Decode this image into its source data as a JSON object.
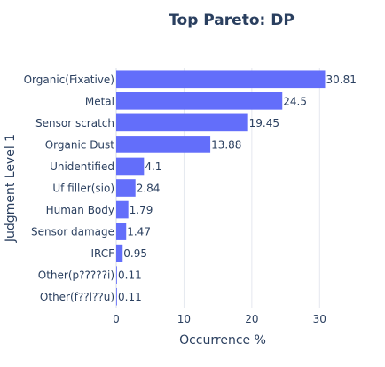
{
  "chart_data": {
    "type": "bar",
    "orientation": "horizontal",
    "title": "Top Pareto: DP",
    "xlabel": "Occurrence %",
    "ylabel": "Judgment Level 1",
    "categories": [
      "Organic(Fixative)",
      "Metal",
      "Sensor scratch",
      "Organic Dust",
      "Unidentified",
      "Uf filler(sio)",
      "Human Body",
      "Sensor damage",
      "IRCF",
      "Other(p?????i)",
      "Other(f??l??u)"
    ],
    "values": [
      30.81,
      24.5,
      19.45,
      13.88,
      4.1,
      2.84,
      1.79,
      1.47,
      0.95,
      0.11,
      0.11
    ],
    "value_labels": [
      "30.81",
      "24.5",
      "19.45",
      "13.88",
      "4.1",
      "2.84",
      "1.79",
      "1.47",
      "0.95",
      "0.11",
      "0.11"
    ],
    "xlim": [
      0,
      31.4
    ],
    "xticks": [
      0,
      10,
      20,
      30
    ],
    "xtick_labels": [
      "0",
      "10",
      "20",
      "30"
    ],
    "grid": true,
    "bar_color": "#636efa"
  }
}
